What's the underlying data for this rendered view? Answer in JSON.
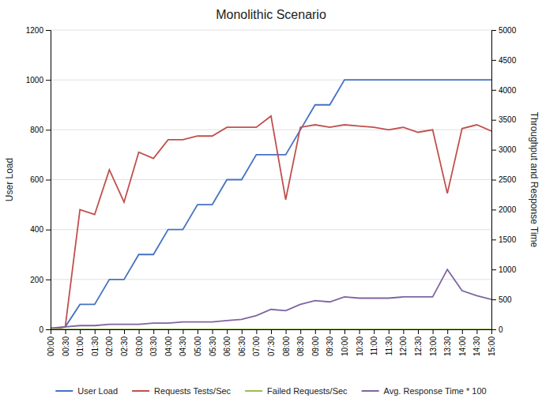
{
  "chart_data": {
    "type": "line",
    "title": "Monolithic Scenario",
    "ylabel": "User Load",
    "y2label": "Throughput and Response Time",
    "categories": [
      "00:00",
      "00:30",
      "01:00",
      "01:30",
      "02:00",
      "02:30",
      "03:00",
      "03:30",
      "04:00",
      "04:30",
      "05:00",
      "05:30",
      "06:00",
      "06:30",
      "07:00",
      "07:30",
      "08:00",
      "08:30",
      "09:00",
      "09:30",
      "10:00",
      "10:30",
      "11:00",
      "11:30",
      "12:00",
      "12:30",
      "13:00",
      "13:30",
      "14:00",
      "14:30",
      "15:00"
    ],
    "series": [
      {
        "name": "User Load",
        "color": "#4472C4",
        "values": [
          0,
          10,
          100,
          100,
          200,
          200,
          300,
          300,
          400,
          400,
          500,
          500,
          600,
          600,
          700,
          700,
          700,
          800,
          900,
          900,
          1000,
          1000,
          1000,
          1000,
          1000,
          1000,
          1000,
          1000,
          1000,
          1000,
          1000
        ]
      },
      {
        "name": "Requests Tests/Sec",
        "color": "#C0504D",
        "values": [
          0,
          10,
          480,
          460,
          640,
          510,
          710,
          685,
          760,
          760,
          775,
          775,
          810,
          810,
          810,
          855,
          520,
          810,
          820,
          810,
          820,
          815,
          810,
          800,
          810,
          790,
          800,
          545,
          805,
          820,
          795
        ]
      },
      {
        "name": "Failed Requests/Sec",
        "color": "#9BBB59",
        "values": [
          0,
          0,
          0,
          0,
          0,
          0,
          0,
          0,
          0,
          0,
          0,
          0,
          0,
          0,
          0,
          0,
          0,
          0,
          0,
          0,
          0,
          0,
          0,
          0,
          0,
          0,
          0,
          0,
          0,
          0,
          0
        ]
      },
      {
        "name": "Avg. Response Time * 100",
        "color": "#8064A2",
        "values": [
          5,
          10,
          15,
          15,
          20,
          20,
          20,
          25,
          25,
          30,
          30,
          30,
          35,
          40,
          55,
          80,
          75,
          100,
          115,
          110,
          130,
          125,
          125,
          125,
          130,
          130,
          130,
          240,
          155,
          135,
          120
        ]
      }
    ],
    "ylim": [
      0,
      1200
    ],
    "yticks": [
      0,
      200,
      400,
      600,
      800,
      1000,
      1200
    ],
    "y2lim": [
      0,
      5000
    ],
    "y2ticks": [
      0,
      500,
      1000,
      1500,
      2000,
      2500,
      3000,
      3500,
      4000,
      4500,
      5000
    ],
    "grid": true,
    "legend": "bottom"
  }
}
